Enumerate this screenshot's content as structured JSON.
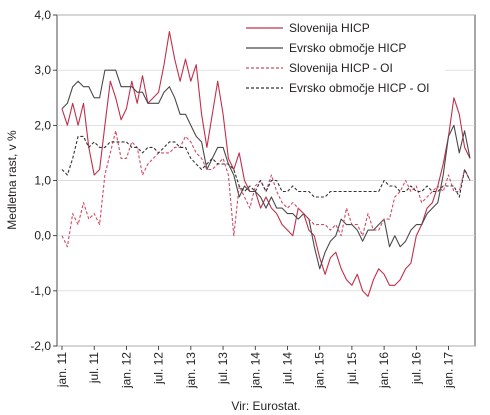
{
  "chart_data": {
    "type": "line",
    "ylabel": "Medletna rast, v %",
    "source_note": "Vir: Eurostat.",
    "ylim": [
      -2.0,
      4.0
    ],
    "y_ticks": [
      "-2,0",
      "-1,0",
      "0,0",
      "1,0",
      "2,0",
      "3,0",
      "4,0"
    ],
    "y_tick_values": [
      -2,
      -1,
      0,
      1,
      2,
      3,
      4
    ],
    "x_tick_labels": [
      "jan. 11",
      "jul. 11",
      "jan. 12",
      "jul. 12",
      "jan. 13",
      "jul. 13",
      "jan. 14",
      "jul. 14",
      "jan. 15",
      "jul. 15",
      "jan. 16",
      "jul. 16",
      "jan. 17"
    ],
    "x_tick_month_index": [
      0,
      6,
      12,
      18,
      24,
      30,
      36,
      42,
      48,
      54,
      60,
      66,
      72
    ],
    "x_start": "jan. 11",
    "x_end": "maj. 17",
    "grid": true,
    "legend_position": "top-right",
    "series": [
      {
        "name": "Slovenija HICP",
        "color": "#c0304a",
        "dash": "solid",
        "values": [
          2.3,
          2.0,
          2.4,
          2.0,
          2.4,
          1.6,
          1.1,
          1.2,
          2.0,
          2.8,
          2.5,
          2.1,
          2.3,
          2.8,
          2.4,
          2.9,
          2.4,
          2.5,
          2.6,
          3.1,
          3.7,
          3.2,
          2.8,
          3.2,
          2.8,
          3.1,
          2.2,
          1.6,
          2.2,
          2.8,
          2.2,
          1.4,
          1.2,
          1.5,
          1.0,
          0.8,
          0.8,
          0.5,
          0.7,
          0.5,
          0.4,
          0.2,
          0.1,
          0.0,
          0.5,
          0.4,
          0.1,
          0.0,
          -0.4,
          -0.7,
          -0.4,
          -0.3,
          -0.6,
          -0.8,
          -0.9,
          -0.7,
          -1.0,
          -1.1,
          -0.8,
          -0.6,
          -0.7,
          -0.9,
          -0.9,
          -0.8,
          -0.6,
          -0.5,
          0.0,
          0.2,
          0.5,
          0.6,
          0.9,
          1.3,
          1.8,
          2.5,
          2.2,
          1.6,
          1.4
        ]
      },
      {
        "name": "Evrsko območje HICP",
        "color": "#4a4a4a",
        "dash": "solid",
        "values": [
          2.3,
          2.4,
          2.7,
          2.8,
          2.7,
          2.7,
          2.5,
          2.5,
          3.0,
          3.0,
          3.0,
          2.7,
          2.7,
          2.7,
          2.6,
          2.6,
          2.4,
          2.4,
          2.4,
          2.6,
          2.7,
          2.5,
          2.2,
          2.2,
          2.0,
          1.8,
          1.7,
          1.2,
          1.4,
          1.6,
          1.6,
          1.3,
          1.1,
          0.7,
          0.9,
          0.8,
          0.8,
          0.7,
          0.5,
          0.7,
          0.5,
          0.5,
          0.4,
          0.4,
          0.3,
          0.4,
          0.3,
          -0.2,
          -0.6,
          -0.3,
          -0.1,
          0.0,
          0.3,
          0.2,
          0.2,
          0.1,
          -0.1,
          0.1,
          0.1,
          0.2,
          0.3,
          -0.2,
          0.0,
          -0.2,
          -0.1,
          0.1,
          0.2,
          0.2,
          0.4,
          0.5,
          0.6,
          1.1,
          1.8,
          2.0,
          1.5,
          1.9,
          1.4
        ]
      },
      {
        "name": "Slovenija HICP - OI",
        "color": "#d24a62",
        "dash": "dash",
        "values": [
          0.0,
          -0.2,
          0.4,
          0.2,
          0.6,
          0.3,
          0.4,
          0.2,
          1.1,
          1.5,
          1.9,
          1.4,
          1.4,
          1.7,
          1.6,
          1.1,
          1.3,
          1.4,
          1.5,
          1.5,
          1.5,
          1.6,
          1.6,
          1.8,
          1.7,
          1.5,
          1.4,
          1.2,
          1.2,
          1.3,
          1.4,
          1.1,
          0.0,
          0.9,
          0.7,
          0.5,
          0.9,
          1.0,
          0.8,
          1.1,
          0.8,
          0.6,
          0.5,
          0.6,
          0.5,
          0.4,
          0.3,
          0.2,
          0.2,
          0.2,
          0.1,
          0.2,
          0.0,
          0.5,
          0.2,
          0.2,
          0.0,
          0.4,
          0.1,
          0.1,
          0.3,
          0.3,
          0.7,
          0.8,
          1.0,
          0.8,
          0.9,
          0.6,
          0.7,
          0.8,
          0.9,
          0.8,
          1.1,
          0.8,
          0.8,
          1.2,
          1.0
        ]
      },
      {
        "name": "Evrsko območje HICP - OI",
        "color": "#333333",
        "dash": "dash",
        "values": [
          1.2,
          1.1,
          1.4,
          1.8,
          1.8,
          1.6,
          1.7,
          1.6,
          1.6,
          1.7,
          1.7,
          1.7,
          1.7,
          1.6,
          1.6,
          1.5,
          1.6,
          1.6,
          1.5,
          1.6,
          1.7,
          1.7,
          1.6,
          1.6,
          1.4,
          1.3,
          1.2,
          1.3,
          1.4,
          1.3,
          1.3,
          1.3,
          1.2,
          0.9,
          0.8,
          0.9,
          0.8,
          1.0,
          0.8,
          1.0,
          1.0,
          0.8,
          0.8,
          0.9,
          0.8,
          0.8,
          0.8,
          0.7,
          0.7,
          0.7,
          0.8,
          0.8,
          0.8,
          0.8,
          0.8,
          0.8,
          0.8,
          0.8,
          0.8,
          0.8,
          1.0,
          0.9,
          0.9,
          0.8,
          0.8,
          0.9,
          0.8,
          0.8,
          0.9,
          0.8,
          0.8,
          0.9,
          0.9,
          0.9,
          0.7,
          1.2,
          1.0
        ]
      }
    ]
  }
}
